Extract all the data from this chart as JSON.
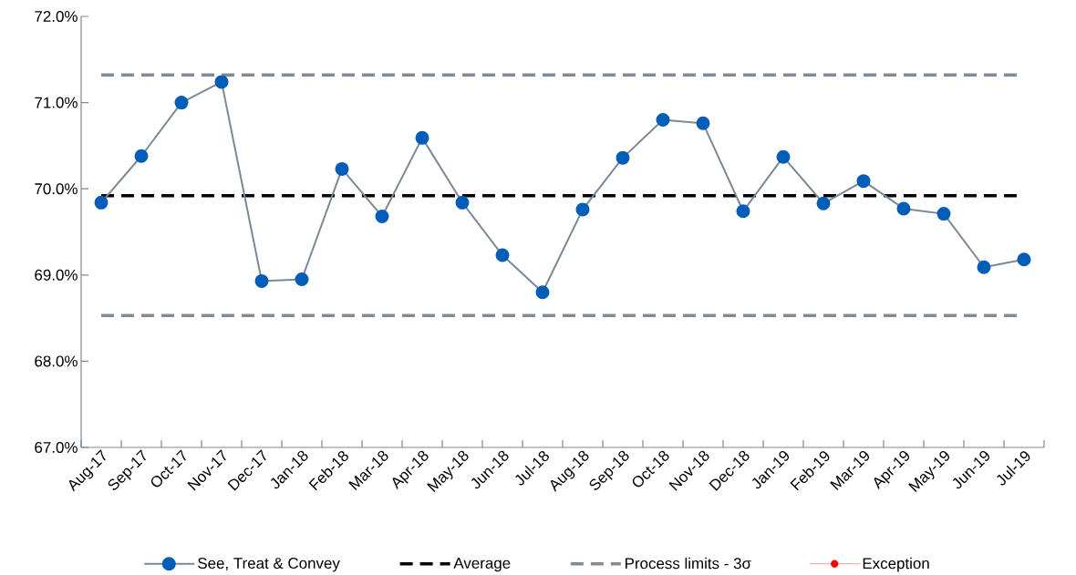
{
  "chart_data": {
    "type": "line",
    "categories": [
      "Aug-17",
      "Sep-17",
      "Oct-17",
      "Nov-17",
      "Dec-17",
      "Jan-18",
      "Feb-18",
      "Mar-18",
      "Apr-18",
      "May-18",
      "Jun-18",
      "Jul-18",
      "Aug-18",
      "Sep-18",
      "Oct-18",
      "Nov-18",
      "Dec-18",
      "Jan-19",
      "Feb-19",
      "Mar-19",
      "Apr-19",
      "May-19",
      "Jun-19",
      "Jul-19"
    ],
    "series": [
      {
        "name": "See, Treat & Convey",
        "color": "#005eb8",
        "values": [
          69.84,
          70.38,
          71.0,
          71.24,
          68.93,
          68.95,
          70.23,
          69.68,
          70.59,
          69.84,
          69.23,
          68.8,
          69.76,
          70.36,
          70.8,
          70.76,
          69.74,
          70.37,
          69.83,
          70.09,
          69.77,
          69.71,
          69.09,
          69.18
        ]
      },
      {
        "name": "Exception",
        "type": "scatter",
        "color": "#ff0000",
        "values": [
          null,
          null,
          null,
          null,
          null,
          null,
          null,
          null,
          null,
          null,
          null,
          null,
          null,
          null,
          null,
          null,
          null,
          null,
          null,
          null,
          null,
          null,
          null,
          null
        ]
      }
    ],
    "ylim": [
      67,
      72
    ],
    "yticks": [
      {
        "value": 67,
        "label": "67.0%"
      },
      {
        "value": 68,
        "label": "68.0%"
      },
      {
        "value": 69,
        "label": "69.0%"
      },
      {
        "value": 70,
        "label": "70.0%"
      },
      {
        "value": 71,
        "label": "71.0%"
      },
      {
        "value": 72,
        "label": "72.0%"
      }
    ],
    "ref_lines": [
      {
        "axis": "y",
        "value": 69.92,
        "label": "Average",
        "color": "#000000",
        "line_style": "dashed"
      },
      {
        "axis": "y",
        "value": 71.32,
        "label": "Process limits - 3σ",
        "color": "#7f8c98",
        "line_style": "dashed"
      },
      {
        "axis": "y",
        "value": 68.53,
        "color": "#7f8c98",
        "line_style": "dashed"
      }
    ],
    "marker": "circle",
    "grid": false,
    "legend": "bottom"
  }
}
